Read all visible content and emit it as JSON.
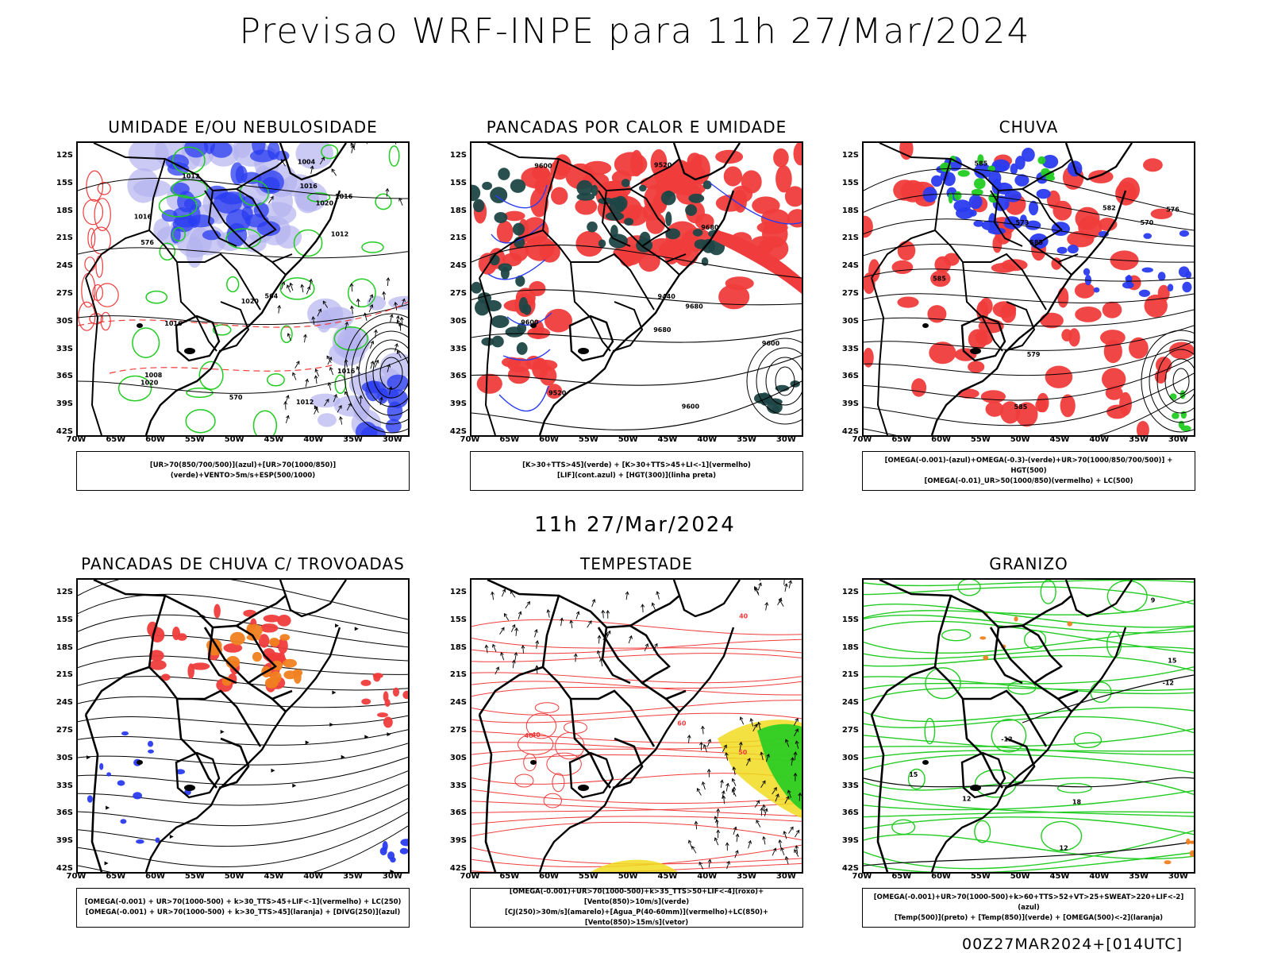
{
  "title": "Previsao WRF-INPE  para 11h 27/Mar/2024",
  "subtitle": "11h 27/Mar/2024",
  "footer": "00Z27MAR2024+[014UTC]",
  "lat_labels": [
    "12S",
    "15S",
    "18S",
    "21S",
    "24S",
    "27S",
    "30S",
    "33S",
    "36S",
    "39S",
    "42S"
  ],
  "lon_labels": [
    "70W",
    "65W",
    "60W",
    "55W",
    "50W",
    "45W",
    "40W",
    "35W",
    "30W"
  ],
  "colors": {
    "black": "#000000",
    "red": "#f03c3c",
    "green": "#22cc22",
    "blue": "#2a3cf0",
    "lightblue": "#b4b4f0",
    "darkteal": "#1e4646",
    "orange": "#f08020",
    "yellow": "#f0dc1e"
  },
  "panels": [
    {
      "title": "UMIDADE E/OU NEBULOSIDADE",
      "legend": [
        "[UR>70(850/700/500)](azul)+[UR>70(1000/850)](verde)+VENTO>5m/s+ESP(500/1000)"
      ],
      "contour_labels": [
        "1012",
        "1012",
        "1012",
        "1016",
        "1016",
        "1020",
        "1016",
        "1020",
        "1016",
        "1020",
        "1008",
        "1004",
        "1016",
        "576",
        "570",
        "564"
      ]
    },
    {
      "title": "PANCADAS POR CALOR E UMIDADE",
      "legend": [
        "[K>30+TTS>45](verde) + [K>30+TTS>45+LI<-1](vermelho)",
        "[LIF](cont.azul) + [HGT(300)](linha preta)"
      ],
      "contour_labels": [
        "9680",
        "9680",
        "9600",
        "9600",
        "9600",
        "9520",
        "9600",
        "9520",
        "9440",
        "9680"
      ]
    },
    {
      "title": "CHUVA",
      "legend": [
        "[OMEGA(-0.001)-(azul)+OMEGA(-0.3)-(verde)+UR>70(1000/850/700/500)] + HGT(500)",
        "[OMEGA(-0.01)_UR>50(1000/850)(vermelho) + LC(500)"
      ],
      "contour_labels": [
        "585",
        "585",
        "585",
        "582",
        "579",
        "576",
        "573",
        "570",
        "585"
      ]
    },
    {
      "title": "PANCADAS DE CHUVA C/ TROVOADAS",
      "legend": [
        "[OMEGA(-0.001) + UR>70(1000-500) + k>30_TTS>45+LIF<-1](vermelho) + LC(250)",
        "[OMEGA(-0.001) + UR>70(1000-500) + k>30_TTS>45](laranja) + [DIVG(250)](azul)"
      ],
      "contour_labels": []
    },
    {
      "title": "TEMPESTADE",
      "legend": [
        "[OMEGA(-0.001)+UR>70(1000-500)+k>35_TTS>50+LIF<-4](roxo)+[Vento(850)>10m/s](verde)",
        "[CJ(250)>30m/s](amarelo)+[Agua_P(40-60mm)](vermelho)+LC(850)+[Vento(850)>15m/s](vetor)"
      ],
      "contour_labels": [
        "60",
        "50",
        "40",
        "40",
        "40"
      ]
    },
    {
      "title": "GRANIZO",
      "legend": [
        "[OMEGA(-0.001)+UR>70(1000-500)+k>60+TTS>52+VT>25+SWEAT>220+LIF<-2](azul)",
        "[Temp(500)](preto) + [Temp(850)](verde) + [OMEGA(500)<-2](laranja)"
      ],
      "contour_labels": [
        "15",
        "12",
        "12",
        "9",
        "-12",
        "-12",
        "18",
        "15"
      ]
    }
  ]
}
